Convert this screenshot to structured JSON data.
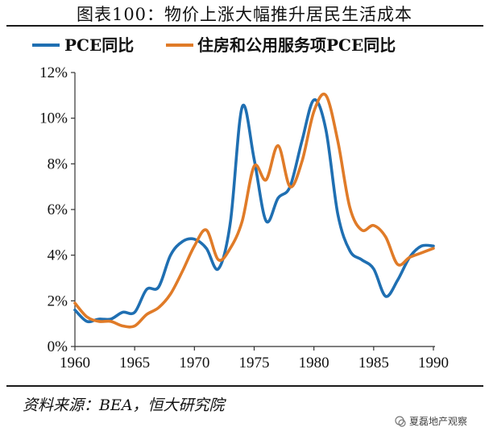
{
  "title": "图表100：物价上涨大幅推升居民生活成本",
  "source": "资料来源：BEA，恒大研究院",
  "watermark": "夏磊地产观察",
  "colors": {
    "series1": "#1f6fb2",
    "series2": "#e07b28"
  },
  "chart_data": {
    "type": "line",
    "title": "图表100：物价上涨大幅推升居民生活成本",
    "xlabel": "",
    "ylabel": "",
    "xlim": [
      1960,
      1990
    ],
    "ylim": [
      0,
      12
    ],
    "x_ticks": [
      "1960",
      "1965",
      "1970",
      "1975",
      "1980",
      "1985",
      "1990"
    ],
    "y_ticks": [
      "0%",
      "2%",
      "4%",
      "6%",
      "8%",
      "10%",
      "12%"
    ],
    "grid": false,
    "legend": "top",
    "series": [
      {
        "name": "PCE同比",
        "color": "#1f6fb2",
        "points": [
          [
            1960,
            1.6
          ],
          [
            1961,
            1.1
          ],
          [
            1962,
            1.2
          ],
          [
            1963,
            1.2
          ],
          [
            1964,
            1.5
          ],
          [
            1965,
            1.5
          ],
          [
            1966,
            2.5
          ],
          [
            1967,
            2.6
          ],
          [
            1968,
            4.0
          ],
          [
            1969,
            4.6
          ],
          [
            1970,
            4.7
          ],
          [
            1971,
            4.3
          ],
          [
            1972,
            3.4
          ],
          [
            1973,
            5.4
          ],
          [
            1974,
            10.5
          ],
          [
            1975,
            8.2
          ],
          [
            1976,
            5.5
          ],
          [
            1977,
            6.5
          ],
          [
            1978,
            7.0
          ],
          [
            1979,
            9.0
          ],
          [
            1980,
            10.8
          ],
          [
            1981,
            9.5
          ],
          [
            1982,
            5.8
          ],
          [
            1983,
            4.2
          ],
          [
            1984,
            3.8
          ],
          [
            1985,
            3.4
          ],
          [
            1986,
            2.2
          ],
          [
            1987,
            2.9
          ],
          [
            1988,
            3.9
          ],
          [
            1989,
            4.4
          ],
          [
            1990,
            4.4
          ]
        ]
      },
      {
        "name": "住房和公用服务项PCE同比",
        "color": "#e07b28",
        "points": [
          [
            1960,
            1.9
          ],
          [
            1961,
            1.3
          ],
          [
            1962,
            1.1
          ],
          [
            1963,
            1.1
          ],
          [
            1964,
            0.9
          ],
          [
            1965,
            0.9
          ],
          [
            1966,
            1.4
          ],
          [
            1967,
            1.7
          ],
          [
            1968,
            2.3
          ],
          [
            1969,
            3.3
          ],
          [
            1970,
            4.4
          ],
          [
            1971,
            5.1
          ],
          [
            1972,
            3.8
          ],
          [
            1973,
            4.3
          ],
          [
            1974,
            5.5
          ],
          [
            1975,
            7.9
          ],
          [
            1976,
            7.3
          ],
          [
            1977,
            8.8
          ],
          [
            1978,
            7.0
          ],
          [
            1979,
            8.1
          ],
          [
            1980,
            10.3
          ],
          [
            1981,
            11.0
          ],
          [
            1982,
            9.0
          ],
          [
            1983,
            6.1
          ],
          [
            1984,
            5.1
          ],
          [
            1985,
            5.3
          ],
          [
            1986,
            4.8
          ],
          [
            1987,
            3.6
          ],
          [
            1988,
            3.9
          ],
          [
            1989,
            4.1
          ],
          [
            1990,
            4.3
          ]
        ]
      }
    ]
  }
}
